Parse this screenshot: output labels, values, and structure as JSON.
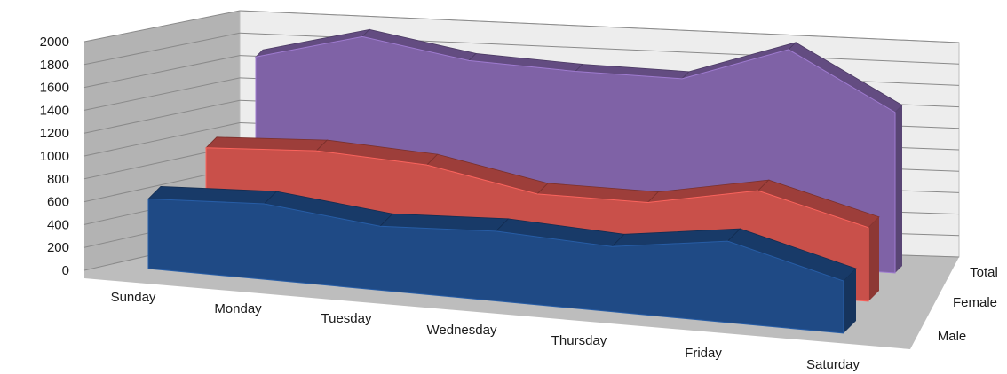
{
  "chart_data": {
    "type": "area",
    "subtype": "3d-area",
    "title": "",
    "xlabel": "",
    "ylabel": "",
    "ylim": [
      0,
      2000
    ],
    "yticks": [
      "0",
      "200",
      "400",
      "600",
      "800",
      "1000",
      "1200",
      "1400",
      "1600",
      "1800",
      "2000"
    ],
    "categories": [
      "Sunday",
      "Monday",
      "Tuesday",
      "Wednesday",
      "Thursday",
      "Friday",
      "Saturday"
    ],
    "series": [
      {
        "name": "Total",
        "values": [
          1550,
          1800,
          1650,
          1620,
          1620,
          1950,
          1450
        ],
        "color": "#7f62a6"
      },
      {
        "name": "Female",
        "values": [
          900,
          950,
          900,
          720,
          720,
          900,
          650
        ],
        "color": "#c9504a"
      },
      {
        "name": "Male",
        "values": [
          600,
          650,
          550,
          600,
          560,
          700,
          450
        ],
        "color": "#1f4a85"
      }
    ],
    "grid": true,
    "legend": "none"
  }
}
